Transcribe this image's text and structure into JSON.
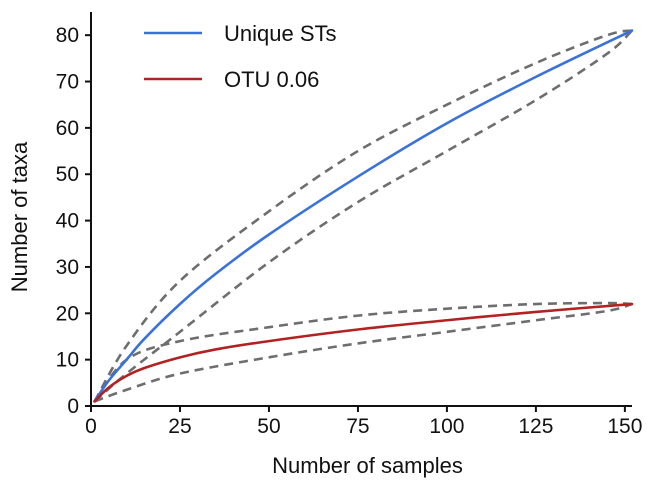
{
  "chart_data": {
    "type": "line",
    "xlabel": "Number of samples",
    "ylabel": "Number of taxa",
    "xlim": [
      0,
      152
    ],
    "ylim": [
      0,
      85
    ],
    "xticks": [
      0,
      25,
      50,
      75,
      100,
      125,
      150
    ],
    "yticks": [
      0,
      10,
      20,
      30,
      40,
      50,
      60,
      70,
      80
    ],
    "grid": false,
    "legend_position": "top-left",
    "series": [
      {
        "name": "Unique STs",
        "color": "#3a72d8",
        "style": "solid",
        "x": [
          1,
          5,
          10,
          15,
          25,
          35,
          50,
          75,
          100,
          125,
          152
        ],
        "y": [
          1,
          5.5,
          10,
          14.5,
          22,
          28.5,
          37,
          49.5,
          61,
          71,
          81
        ]
      },
      {
        "name": "OTU 0.06",
        "color": "#b22222",
        "style": "solid",
        "x": [
          1,
          5,
          10,
          15,
          25,
          35,
          50,
          75,
          100,
          125,
          152
        ],
        "y": [
          1,
          4,
          6.5,
          8.2,
          10.5,
          12.2,
          14,
          16.5,
          18.5,
          20.3,
          22
        ]
      }
    ],
    "confidence_bands": {
      "color": "#6e6e6e",
      "style": "dashed",
      "bands": [
        {
          "series": "Unique STs",
          "upper": {
            "x": [
              1,
              10,
              25,
              50,
              75,
              100,
              125,
              145,
              152
            ],
            "y": [
              1,
              13,
              27,
              42,
              55,
              65,
              74,
              80,
              81
            ]
          },
          "lower": {
            "x": [
              1,
              10,
              25,
              50,
              75,
              100,
              125,
              145,
              152
            ],
            "y": [
              1,
              7,
              16,
              31,
              44,
              55,
              66,
              76,
              81
            ]
          }
        },
        {
          "series": "OTU 0.06",
          "upper": {
            "x": [
              1,
              10,
              25,
              50,
              75,
              100,
              125,
              145,
              152
            ],
            "y": [
              1,
              10,
              14,
              17,
              19.5,
              21,
              22,
              22.2,
              22
            ]
          },
          "lower": {
            "x": [
              1,
              10,
              25,
              50,
              75,
              100,
              125,
              145,
              152
            ],
            "y": [
              1,
              3.5,
              7,
              10.5,
              13.5,
              16,
              18.5,
              20.5,
              22
            ]
          }
        }
      ]
    }
  }
}
